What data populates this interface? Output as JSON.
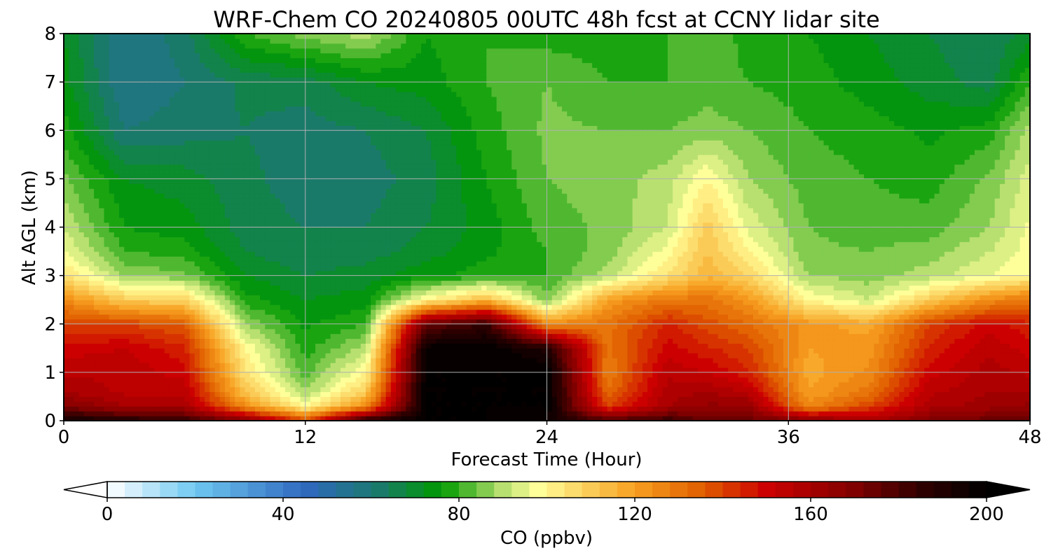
{
  "chart_data": {
    "type": "heatmap",
    "title": "WRF-Chem CO  20240805 00UTC 48h fcst at CCNY lidar site",
    "xlabel": "Forecast Time (Hour)",
    "ylabel": "Alt AGL (km)",
    "xlim": [
      0,
      48
    ],
    "ylim": [
      0,
      8
    ],
    "xticks": [
      0,
      12,
      24,
      36,
      48
    ],
    "yticks": [
      0,
      1,
      2,
      3,
      4,
      5,
      6,
      7,
      8
    ],
    "grid": true,
    "colorbar": {
      "label": "CO  (ppbv)",
      "range": [
        0,
        200
      ],
      "ticks": [
        0,
        40,
        80,
        120,
        160,
        200
      ],
      "extend": "both",
      "orientation": "horizontal",
      "stops": [
        {
          "value": 0,
          "color": "#ffffff"
        },
        {
          "value": 20,
          "color": "#6ec8f0"
        },
        {
          "value": 45,
          "color": "#2f68c0"
        },
        {
          "value": 62,
          "color": "#1a7a6a"
        },
        {
          "value": 76,
          "color": "#009a00"
        },
        {
          "value": 90,
          "color": "#b8e070"
        },
        {
          "value": 98,
          "color": "#ffff99"
        },
        {
          "value": 120,
          "color": "#f7a020"
        },
        {
          "value": 135,
          "color": "#e06000"
        },
        {
          "value": 150,
          "color": "#cc0000"
        },
        {
          "value": 170,
          "color": "#800000"
        },
        {
          "value": 185,
          "color": "#300000"
        },
        {
          "value": 200,
          "color": "#000000"
        }
      ]
    },
    "x": [
      0,
      3,
      6,
      9,
      12,
      15,
      18,
      21,
      24,
      27,
      30,
      32,
      34,
      37,
      40,
      43,
      46,
      48
    ],
    "y": [
      0,
      0.3,
      0.6,
      1,
      1.5,
      2,
      2.5,
      3,
      3.5,
      4,
      5,
      6,
      7,
      8
    ],
    "z": [
      [
        195,
        190,
        185,
        170,
        140,
        190,
        200,
        200,
        195,
        180,
        185,
        175,
        175,
        170,
        160,
        170,
        175,
        175
      ],
      [
        170,
        160,
        160,
        125,
        100,
        125,
        200,
        200,
        200,
        140,
        160,
        165,
        165,
        125,
        140,
        158,
        162,
        165
      ],
      [
        160,
        155,
        155,
        112,
        88,
        110,
        200,
        200,
        200,
        132,
        158,
        160,
        155,
        120,
        130,
        155,
        160,
        160
      ],
      [
        155,
        155,
        150,
        105,
        82,
        100,
        200,
        200,
        200,
        128,
        155,
        152,
        145,
        118,
        125,
        150,
        158,
        155
      ],
      [
        150,
        152,
        145,
        100,
        78,
        90,
        198,
        200,
        190,
        130,
        150,
        145,
        140,
        120,
        122,
        145,
        155,
        150
      ],
      [
        140,
        140,
        135,
        88,
        75,
        80,
        175,
        185,
        125,
        130,
        145,
        138,
        132,
        122,
        118,
        140,
        150,
        145
      ],
      [
        125,
        110,
        108,
        78,
        72,
        74,
        100,
        115,
        85,
        120,
        130,
        130,
        122,
        100,
        92,
        110,
        125,
        130
      ],
      [
        105,
        88,
        85,
        72,
        68,
        70,
        75,
        78,
        80,
        90,
        105,
        115,
        108,
        88,
        86,
        90,
        96,
        100
      ],
      [
        96,
        80,
        78,
        68,
        65,
        66,
        70,
        75,
        80,
        86,
        98,
        112,
        100,
        85,
        84,
        86,
        92,
        98
      ],
      [
        92,
        76,
        74,
        66,
        64,
        64,
        68,
        74,
        82,
        85,
        92,
        110,
        95,
        84,
        82,
        82,
        88,
        97
      ],
      [
        85,
        72,
        70,
        65,
        62,
        62,
        66,
        76,
        84,
        86,
        90,
        100,
        88,
        82,
        80,
        78,
        85,
        94
      ],
      [
        78,
        60,
        62,
        64,
        62,
        64,
        68,
        78,
        85,
        84,
        84,
        86,
        84,
        80,
        78,
        75,
        78,
        90
      ],
      [
        74,
        56,
        60,
        65,
        66,
        72,
        74,
        80,
        84,
        80,
        80,
        82,
        80,
        78,
        74,
        70,
        66,
        80
      ],
      [
        72,
        56,
        62,
        80,
        86,
        90,
        76,
        80,
        78,
        78,
        80,
        84,
        78,
        76,
        72,
        68,
        64,
        70
      ]
    ]
  }
}
